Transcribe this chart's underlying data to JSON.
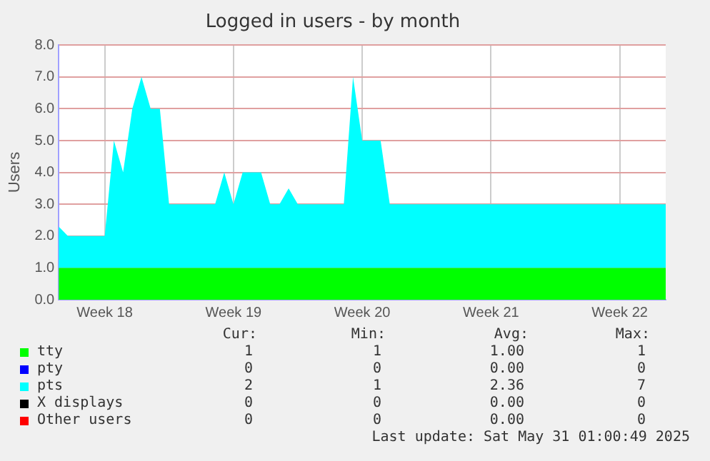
{
  "chart_data": {
    "type": "area",
    "title": "Logged in users - by month",
    "ylabel": "Users",
    "stacked": true,
    "grid": true,
    "legend": "bottom",
    "categories": [
      null,
      null,
      null,
      null,
      null,
      "Week 18",
      null,
      null,
      null,
      null,
      null,
      null,
      null,
      null,
      null,
      null,
      null,
      null,
      null,
      "Week 19",
      null,
      null,
      null,
      null,
      null,
      null,
      null,
      null,
      null,
      null,
      null,
      null,
      null,
      "Week 20",
      null,
      null,
      null,
      null,
      null,
      null,
      null,
      null,
      null,
      null,
      null,
      null,
      null,
      "Week 21",
      null,
      null,
      null,
      null,
      null,
      null,
      null,
      null,
      null,
      null,
      null,
      null,
      null,
      "Week 22",
      null,
      null,
      null,
      null,
      null
    ],
    "ylim": [
      0,
      8
    ],
    "yticks": [
      {
        "value": 0,
        "label": "0.0"
      },
      {
        "value": 1,
        "label": "1.0"
      },
      {
        "value": 2,
        "label": "2.0"
      },
      {
        "value": 3,
        "label": "3.0"
      },
      {
        "value": 4,
        "label": "4.0"
      },
      {
        "value": 5,
        "label": "5.0"
      },
      {
        "value": 6,
        "label": "6.0"
      },
      {
        "value": 7,
        "label": "7.0"
      },
      {
        "value": 8,
        "label": "8.0"
      }
    ],
    "series": [
      {
        "name": "tty",
        "color": "#00ff00",
        "values": [
          1,
          1,
          1,
          1,
          1,
          1,
          1,
          1,
          1,
          1,
          1,
          1,
          1,
          1,
          1,
          1,
          1,
          1,
          1,
          1,
          1,
          1,
          1,
          1,
          1,
          1,
          1,
          1,
          1,
          1,
          1,
          1,
          1,
          1,
          1,
          1,
          1,
          1,
          1,
          1,
          1,
          1,
          1,
          1,
          1,
          1,
          1,
          1,
          1,
          1,
          1,
          1,
          1,
          1,
          1,
          1,
          1,
          1,
          1,
          1,
          1,
          1,
          1,
          1,
          1,
          1,
          1
        ]
      },
      {
        "name": "pty",
        "color": "#0000ff",
        "values": [
          null,
          null,
          null,
          null,
          null,
          null,
          null,
          null,
          null,
          null,
          null,
          null,
          null,
          null,
          null,
          null,
          null,
          null,
          null,
          null,
          null,
          null,
          null,
          null,
          null,
          null,
          null,
          null,
          null,
          null,
          null,
          null,
          null,
          null,
          null,
          null,
          null,
          null,
          null,
          null,
          null,
          null,
          null,
          null,
          null,
          null,
          null,
          null,
          null,
          null,
          null,
          null,
          null,
          null,
          null,
          null,
          null,
          null,
          null,
          null,
          null,
          null,
          null,
          null,
          null,
          null,
          null
        ]
      },
      {
        "name": "pts",
        "color": "#00ffff",
        "values": [
          1.3,
          1,
          1,
          1,
          1,
          1,
          4,
          3,
          5,
          6,
          5,
          5,
          2,
          2,
          2,
          2,
          2,
          2,
          3,
          2,
          3,
          3,
          3,
          2,
          2,
          2.5,
          2,
          2,
          2,
          2,
          2,
          2,
          6,
          4,
          4,
          4,
          2,
          2,
          2,
          2,
          2,
          2,
          2,
          2,
          2,
          2,
          2,
          2,
          2,
          2,
          2,
          2,
          2,
          2,
          2,
          2,
          2,
          2,
          2,
          2,
          2,
          2,
          2,
          2,
          2,
          2,
          2
        ]
      },
      {
        "name": "X displays",
        "color": "#000000",
        "values": [
          null,
          null,
          null,
          null,
          null,
          null,
          null,
          null,
          null,
          null,
          null,
          null,
          null,
          null,
          null,
          null,
          null,
          null,
          null,
          null,
          null,
          null,
          null,
          null,
          null,
          null,
          null,
          null,
          null,
          null,
          null,
          null,
          null,
          null,
          null,
          null,
          null,
          null,
          null,
          null,
          null,
          null,
          null,
          null,
          null,
          null,
          null,
          null,
          null,
          null,
          null,
          null,
          null,
          null,
          null,
          null,
          null,
          null,
          null,
          null,
          null,
          null,
          null,
          null,
          null,
          null,
          null
        ]
      },
      {
        "name": "Other users",
        "color": "#ff0000",
        "values": [
          null,
          null,
          null,
          null,
          null,
          null,
          null,
          null,
          null,
          null,
          null,
          null,
          null,
          null,
          null,
          null,
          null,
          null,
          null,
          null,
          null,
          null,
          null,
          null,
          null,
          null,
          null,
          null,
          null,
          null,
          null,
          null,
          null,
          null,
          null,
          null,
          null,
          null,
          null,
          null,
          null,
          null,
          null,
          null,
          null,
          null,
          null,
          null,
          null,
          null,
          null,
          null,
          null,
          null,
          null,
          null,
          null,
          null,
          null,
          null,
          null,
          null,
          null,
          null,
          null,
          null,
          null
        ]
      }
    ],
    "annotations": [
      "Cur:",
      "Min:",
      "Avg:",
      "Max:",
      "1",
      "1",
      "1.00",
      "1",
      "0",
      "0",
      "0.00",
      "0",
      "2",
      "1",
      "2.36",
      "7",
      "0",
      "0",
      "0.00",
      "0",
      "0",
      "0",
      "0.00",
      "0",
      "Last update: Sat May 31 01:00:49 2025"
    ]
  }
}
